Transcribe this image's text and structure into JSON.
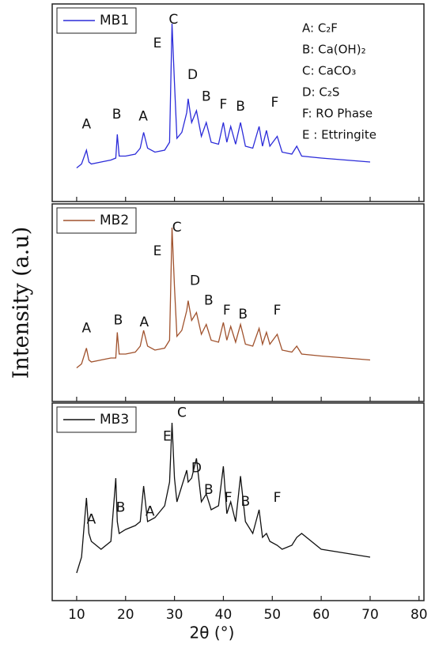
{
  "chart_data": [
    {
      "type": "line",
      "x": [
        10,
        11,
        12,
        12.5,
        13,
        15,
        17,
        18,
        18.3,
        18.7,
        20,
        22,
        23,
        23.7,
        24.5,
        26,
        28,
        29,
        29.5,
        30,
        30.5,
        31.5,
        32.5,
        32.8,
        33.5,
        34.5,
        35.5,
        36.5,
        37.5,
        39,
        40,
        40.7,
        41.5,
        42.5,
        43.5,
        44.5,
        46,
        47.3,
        48,
        48.8,
        49.5,
        51,
        52,
        54,
        55,
        56,
        60,
        65,
        70
      ],
      "series": [
        {
          "name": "MB1",
          "color": "#2b2bd9",
          "values": [
            17,
            19,
            26,
            20,
            19,
            20,
            21,
            22,
            34,
            23,
            23,
            24,
            27,
            35,
            27,
            25,
            26,
            30,
            90,
            60,
            32,
            35,
            45,
            52,
            40,
            46,
            33,
            40,
            30,
            29,
            40,
            30,
            38,
            29,
            40,
            28,
            27,
            38,
            28,
            36,
            28,
            33,
            25,
            24,
            28,
            23,
            22,
            21,
            20
          ]
        }
      ],
      "xlim": [
        5,
        81
      ],
      "xticks": [
        10,
        20,
        30,
        40,
        50,
        60,
        70,
        80
      ],
      "ylim": [
        0,
        100
      ],
      "annotations": [
        {
          "text": "A",
          "x": 12,
          "y": 39
        },
        {
          "text": "B",
          "x": 18.2,
          "y": 44
        },
        {
          "text": "A",
          "x": 23.6,
          "y": 43
        },
        {
          "text": "C",
          "x": 29.8,
          "y": 92
        },
        {
          "text": "E",
          "x": 26.5,
          "y": 80
        },
        {
          "text": "D",
          "x": 33.7,
          "y": 64
        },
        {
          "text": "B",
          "x": 36.5,
          "y": 53
        },
        {
          "text": "F",
          "x": 40,
          "y": 49
        },
        {
          "text": "B",
          "x": 43.5,
          "y": 48
        },
        {
          "text": "F",
          "x": 50.5,
          "y": 50
        }
      ],
      "key": [
        "A: C₂F",
        "B: Ca(OH)₂",
        "C: CaCO₃",
        "D: C₂S",
        "F: RO Phase",
        "E : Ettringite"
      ]
    },
    {
      "type": "line",
      "x": [
        10,
        11,
        12,
        12.5,
        13,
        15,
        17,
        18,
        18.3,
        18.7,
        20,
        22,
        23,
        23.7,
        24.5,
        26,
        28,
        29,
        29.5,
        30,
        30.5,
        31.5,
        32.5,
        32.8,
        33.5,
        34.5,
        35.5,
        36.5,
        37.5,
        39,
        40,
        40.7,
        41.5,
        42.5,
        43.5,
        44.5,
        46,
        47.3,
        48,
        48.8,
        49.5,
        51,
        52,
        54,
        55,
        56,
        60,
        65,
        70
      ],
      "series": [
        {
          "name": "MB2",
          "color": "#a0522d",
          "values": [
            17,
            19,
            27,
            21,
            20,
            21,
            22,
            22,
            35,
            24,
            24,
            25,
            28,
            36,
            28,
            26,
            27,
            31,
            88,
            58,
            33,
            36,
            46,
            51,
            41,
            45,
            34,
            39,
            31,
            30,
            40,
            31,
            38,
            30,
            39,
            29,
            28,
            37,
            29,
            35,
            29,
            34,
            26,
            25,
            28,
            24,
            23,
            22,
            21
          ]
        }
      ],
      "xlim": [
        5,
        81
      ],
      "xticks": [
        10,
        20,
        30,
        40,
        50,
        60,
        70,
        80
      ],
      "ylim": [
        0,
        100
      ],
      "annotations": [
        {
          "text": "A",
          "x": 12,
          "y": 37
        },
        {
          "text": "B",
          "x": 18.5,
          "y": 41
        },
        {
          "text": "A",
          "x": 23.8,
          "y": 40
        },
        {
          "text": "C",
          "x": 30.5,
          "y": 88
        },
        {
          "text": "E",
          "x": 26.5,
          "y": 76
        },
        {
          "text": "D",
          "x": 34.2,
          "y": 61
        },
        {
          "text": "B",
          "x": 37,
          "y": 51
        },
        {
          "text": "F",
          "x": 40.7,
          "y": 46
        },
        {
          "text": "B",
          "x": 44,
          "y": 44
        },
        {
          "text": "F",
          "x": 51,
          "y": 46
        }
      ],
      "ylabel": "Intensity (a.u)"
    },
    {
      "type": "line",
      "x": [
        10,
        11,
        12,
        12.5,
        13,
        15,
        17,
        18,
        18.3,
        18.7,
        20,
        22,
        23,
        23.7,
        24.5,
        26,
        28,
        29,
        29.5,
        30,
        30.5,
        31.5,
        32.5,
        32.8,
        33.5,
        34.5,
        35.5,
        36.5,
        37.5,
        39,
        40,
        40.7,
        41.5,
        42.5,
        43.5,
        44.5,
        46,
        47.3,
        48,
        48.8,
        49.5,
        51,
        52,
        54,
        55,
        56,
        60,
        65,
        70
      ],
      "series": [
        {
          "name": "MB3",
          "color": "#111111",
          "values": [
            14,
            22,
            52,
            34,
            30,
            26,
            30,
            62,
            40,
            34,
            36,
            38,
            40,
            58,
            40,
            42,
            48,
            60,
            90,
            62,
            50,
            58,
            66,
            60,
            62,
            72,
            50,
            54,
            46,
            48,
            68,
            44,
            50,
            40,
            63,
            40,
            34,
            46,
            32,
            34,
            30,
            28,
            26,
            28,
            32,
            34,
            26,
            24,
            22
          ]
        }
      ],
      "xlim": [
        5,
        81
      ],
      "xticks": [
        10,
        20,
        30,
        40,
        50,
        60,
        70,
        80
      ],
      "ylim": [
        0,
        100
      ],
      "annotations": [
        {
          "text": "A",
          "x": 13,
          "y": 41
        },
        {
          "text": "B",
          "x": 19,
          "y": 47
        },
        {
          "text": "A",
          "x": 25,
          "y": 45
        },
        {
          "text": "C",
          "x": 31.5,
          "y": 95
        },
        {
          "text": "E",
          "x": 28.5,
          "y": 83
        },
        {
          "text": "D",
          "x": 34.5,
          "y": 67
        },
        {
          "text": "B",
          "x": 37,
          "y": 56
        },
        {
          "text": "F",
          "x": 41,
          "y": 52
        },
        {
          "text": "B",
          "x": 44.5,
          "y": 50
        },
        {
          "text": "F",
          "x": 51,
          "y": 52
        }
      ],
      "xlabel": "2θ (°)"
    }
  ]
}
